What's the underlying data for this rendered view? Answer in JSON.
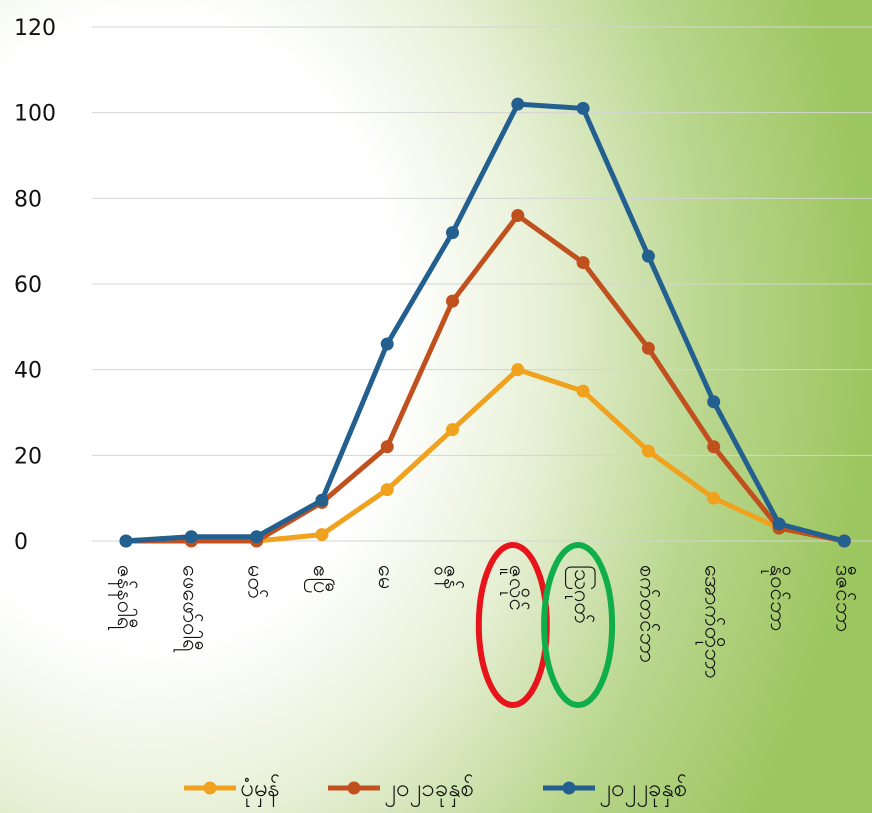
{
  "chart_data": {
    "type": "line",
    "categories": [
      "ဇန်နဝါရီ",
      "ဖေဖော်ဝါရီ",
      "မတ်",
      "ဧပြီ",
      "မေ",
      "ဇွန်",
      "ဇူလိုင်",
      "ဩဂုတ်",
      "စက်တင်ဘာ",
      "အောက်တိုဘာ",
      "နိုဝင်ဘာ",
      "ဒီဇင်ဘာ"
    ],
    "series": [
      {
        "name": "ပုံမှန်",
        "color": "#f0a21e",
        "values": [
          0,
          1,
          0,
          1.5,
          12,
          26,
          40,
          35,
          21,
          10,
          3,
          0
        ]
      },
      {
        "name": "၂၀၂၁ခုနှစ်",
        "color": "#c1501f",
        "values": [
          0,
          0,
          0,
          9,
          22,
          56,
          76,
          65,
          45,
          22,
          3,
          0
        ]
      },
      {
        "name": "၂၀၂၂ခုနှစ်",
        "color": "#235f8f",
        "values": [
          0,
          1,
          1,
          9.5,
          46,
          72,
          102,
          101,
          66.5,
          32.5,
          4,
          0
        ]
      }
    ],
    "yticks": [
      0,
      20,
      40,
      60,
      80,
      100,
      120
    ],
    "ylim": [
      0,
      120
    ],
    "grid": true,
    "legend_position": "bottom",
    "highlights": [
      {
        "category": "ဇူလိုင်",
        "color": "#e8141b"
      },
      {
        "category": "ဩဂုတ်",
        "color": "#0fae4b"
      }
    ]
  }
}
